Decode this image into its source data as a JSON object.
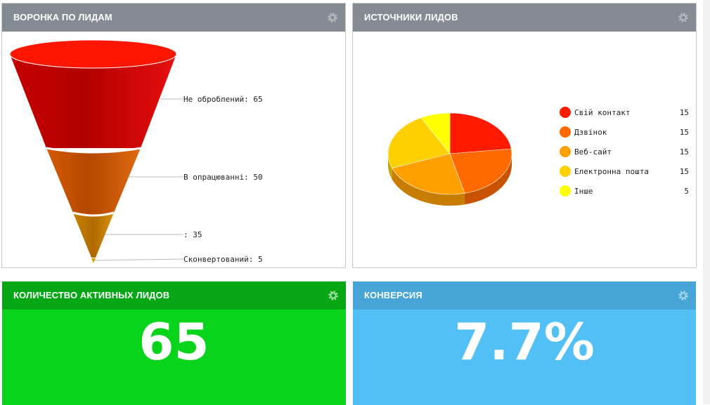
{
  "funnel_panel": {
    "title": "ВОРОНКА ПО ЛИДАМ",
    "settings_icon": "gear-icon",
    "chart_data": {
      "type": "funnel",
      "stages": [
        {
          "label": "Не оброблений",
          "value": 65,
          "color": "#d40000"
        },
        {
          "label": "В опрацюванні",
          "value": 50,
          "color": "#c84f00"
        },
        {
          "label": "",
          "value": 35,
          "color": "#c88000"
        },
        {
          "label": "Сконвертований",
          "value": 5,
          "color": "#d4a000"
        }
      ],
      "labels": [
        "Не оброблений: 65",
        "В опрацюванні: 50",
        ": 35",
        "Сконвертований: 5"
      ]
    }
  },
  "sources_panel": {
    "title": "ИСТОЧНИКИ ЛИДОВ",
    "settings_icon": "gear-icon",
    "chart_data": {
      "type": "pie",
      "categories": [
        "Свій контакт",
        "Дзвінок",
        "Веб-сайт",
        "Електронна пошта",
        "Інше"
      ],
      "values": [
        15,
        15,
        15,
        15,
        5
      ],
      "colors": [
        "#ff1a00",
        "#ff6a00",
        "#ffa000",
        "#ffd000",
        "#ffff00"
      ],
      "legend_position": "right"
    },
    "legend": [
      {
        "label": "Свій контакт",
        "value": "15",
        "color": "#ff1a00"
      },
      {
        "label": "Дзвінок",
        "value": "15",
        "color": "#ff6a00"
      },
      {
        "label": "Веб-сайт",
        "value": "15",
        "color": "#ffa000"
      },
      {
        "label": "Електронна пошта",
        "value": "15",
        "color": "#ffd000"
      },
      {
        "label": "Інше",
        "value": "5",
        "color": "#ffff00"
      }
    ]
  },
  "active_leads_panel": {
    "title": "КОЛИЧЕСТВО АКТИВНЫХ ЛИДОВ",
    "value": "65",
    "color": "#07d41a",
    "settings_icon": "gear-icon"
  },
  "conversion_panel": {
    "title": "КОНВЕРСИЯ",
    "value": "7.7%",
    "color": "#52c0f5",
    "settings_icon": "gear-icon"
  }
}
